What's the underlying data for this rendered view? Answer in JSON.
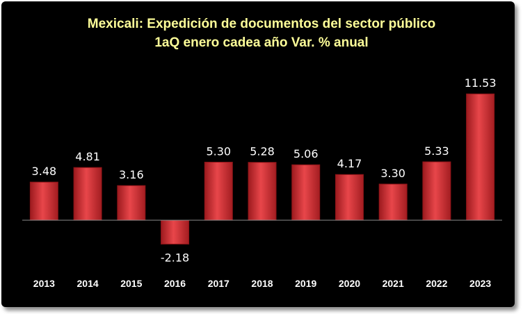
{
  "chart_data": {
    "type": "bar",
    "title": "Mexicali: Expedición de documentos del sector público",
    "subtitle": "1aQ enero cadea año Var. % anual",
    "categories": [
      "2013",
      "2014",
      "2015",
      "2016",
      "2017",
      "2018",
      "2019",
      "2020",
      "2021",
      "2022",
      "2023"
    ],
    "values": [
      3.48,
      4.81,
      3.16,
      -2.18,
      5.3,
      5.28,
      5.06,
      4.17,
      3.3,
      5.33,
      11.53
    ],
    "value_labels": [
      "3.48",
      "4.81",
      "3.16",
      "-2.18",
      "5.30",
      "5.28",
      "5.06",
      "4.17",
      "3.30",
      "5.33",
      "11.53"
    ],
    "xlabel": "",
    "ylabel": "",
    "grid": false,
    "legend": "none",
    "colors": {
      "background": "#000000",
      "bar": "#d9363a",
      "bar_dark": "#8e1418",
      "title": "#ffff99",
      "labels": "#ffffff",
      "axis": "#8c8c8c"
    }
  }
}
